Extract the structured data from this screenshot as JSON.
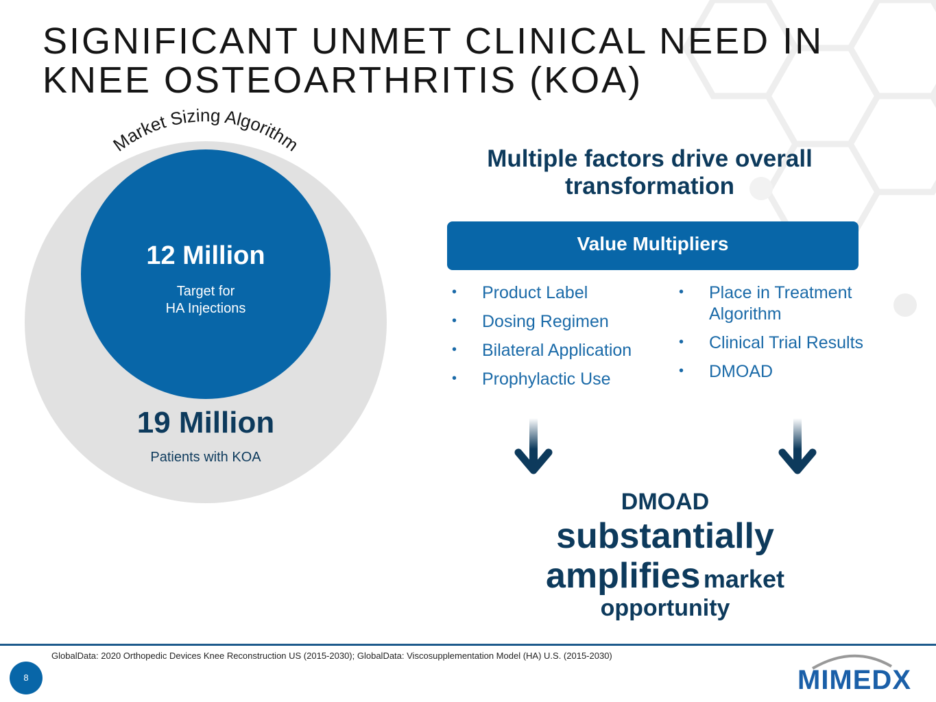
{
  "header": {
    "title_lines": [
      "SIGNIFICANT UNMET CLINICAL NEED IN",
      "KNEE OSTEOARTHRITIS (KOA)"
    ]
  },
  "market_sizing": {
    "arc_label": "Market Sizing Algorithm",
    "inner": {
      "value": "12 Million",
      "caption_lines": [
        "Target for",
        "HA Injections"
      ]
    },
    "outer": {
      "value": "19 Million",
      "caption": "Patients with KOA"
    }
  },
  "factors": {
    "heading_lines": [
      "Multiple factors drive overall",
      "transformation"
    ],
    "box_label": "Value Multipliers",
    "left_bullets": [
      "Product Label",
      "Dosing Regimen",
      "Bilateral Application",
      "Prophylactic Use"
    ],
    "right_bullets": [
      "Place in Treatment Algorithm",
      "Clinical Trial Results",
      "DMOAD"
    ]
  },
  "conclusion": {
    "line1": "DMOAD",
    "line2": "substantially",
    "line3_big": "amplifies",
    "line3_small": "market",
    "line4": "opportunity"
  },
  "footer": {
    "source": "GlobalData: 2020 Orthopedic Devices Knee Reconstruction US (2015-2030); GlobalData: Viscosupplementation Model (HA) U.S. (2015-2030)",
    "page_number": "8",
    "logo": "MIMEDX"
  }
}
